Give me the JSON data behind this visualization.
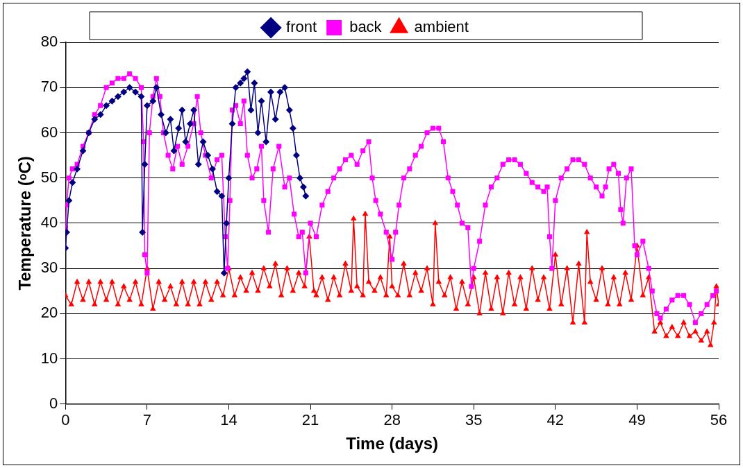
{
  "chart_data": {
    "type": "line",
    "xlabel": "Time (days)",
    "ylabel": "Temperature (ᵒC)",
    "xlim": [
      0,
      56
    ],
    "xticks": [
      0,
      7,
      14,
      21,
      28,
      35,
      42,
      49,
      56
    ],
    "ylim": [
      0,
      80
    ],
    "yticks": [
      0,
      10,
      20,
      30,
      40,
      50,
      60,
      70,
      80
    ],
    "grid": "y",
    "legend": "top",
    "line_style": "solid",
    "series": [
      {
        "name": "front",
        "color": "#000080",
        "marker": "diamond",
        "x": [
          0,
          0.1,
          0.3,
          0.6,
          1,
          1.5,
          2,
          2.5,
          3,
          3.5,
          4,
          4.5,
          5,
          5.5,
          6,
          6.5,
          6.6,
          6.8,
          7,
          7.5,
          7.8,
          8.2,
          8.6,
          9,
          9.3,
          9.7,
          10,
          10.3,
          10.7,
          11,
          11.4,
          11.8,
          12.2,
          12.6,
          13,
          13.4,
          13.6,
          13.8,
          14,
          14.3,
          14.6,
          15,
          15.3,
          15.6,
          15.9,
          16.2,
          16.5,
          16.8,
          17.2,
          17.6,
          18,
          18.4,
          18.8,
          19.2,
          19.5,
          19.8,
          20.1,
          20.4,
          20.6
        ],
        "values": [
          34.5,
          38,
          45,
          49,
          52,
          56,
          60,
          63,
          64,
          66,
          67,
          68,
          69,
          70,
          69,
          68,
          38,
          53,
          66,
          67,
          70,
          64,
          60,
          63,
          56,
          61,
          65,
          58,
          62,
          65,
          53,
          58,
          55,
          52,
          47,
          46,
          29,
          40,
          50,
          62,
          70,
          71,
          72,
          73.5,
          65,
          71,
          60,
          67,
          58,
          69,
          63,
          69,
          70,
          65,
          61,
          55,
          50,
          48,
          46
        ]
      },
      {
        "name": "back",
        "color": "#ff00ff",
        "marker": "square",
        "x": [
          0,
          0.1,
          0.3,
          0.6,
          1,
          1.5,
          2,
          2.5,
          3,
          3.5,
          4,
          4.5,
          5,
          5.5,
          6,
          6.5,
          6.7,
          6.8,
          7,
          7.2,
          7.5,
          7.8,
          8.1,
          8.4,
          8.8,
          9.2,
          9.6,
          10,
          10.5,
          11,
          11.3,
          11.6,
          12,
          12.5,
          13,
          13.4,
          13.7,
          13.9,
          14.1,
          14.3,
          14.6,
          15,
          15.3,
          15.6,
          16,
          16.4,
          16.8,
          17,
          17.4,
          17.8,
          18.3,
          18.8,
          19.2,
          19.6,
          20,
          20.3,
          20.6,
          21,
          21.5,
          22,
          22.5,
          23,
          23.5,
          24,
          24.5,
          25,
          25.5,
          26,
          26.3,
          26.6,
          27,
          27.5,
          28,
          28.3,
          28.6,
          29,
          29.5,
          30,
          30.5,
          31,
          31.5,
          32,
          32.4,
          32.8,
          33.2,
          33.6,
          34,
          34.5,
          34.8,
          35,
          35.5,
          36,
          36.5,
          37,
          37.5,
          38,
          38.5,
          39,
          39.5,
          40,
          40.5,
          41,
          41.3,
          41.5,
          41.7,
          42,
          42.5,
          43,
          43.5,
          44,
          44.5,
          45,
          45.5,
          46,
          46.3,
          46.6,
          47,
          47.4,
          47.6,
          47.8,
          48.1,
          48.5,
          48.8,
          49,
          49.5,
          50,
          50.3,
          50.7,
          51,
          51.5,
          52,
          52.5,
          53,
          53.5,
          54,
          54.5,
          55,
          55.5,
          55.8
        ],
        "values": [
          39,
          44,
          50,
          52,
          53,
          57,
          60,
          64,
          66,
          70,
          71,
          72,
          72,
          73,
          72,
          70,
          58,
          33,
          29,
          60,
          68,
          72,
          68,
          60,
          55,
          52,
          57,
          53,
          57,
          62,
          68,
          60,
          55,
          50,
          54,
          55,
          37,
          30,
          45,
          65,
          66,
          62,
          67,
          55,
          50,
          52,
          57,
          45,
          38,
          52,
          57,
          48,
          50,
          42,
          37,
          38,
          29,
          40,
          37,
          44,
          47,
          50,
          52,
          54,
          55,
          53,
          56,
          58,
          50,
          45,
          42,
          38,
          32,
          38,
          44,
          50,
          52,
          55,
          57,
          60,
          61,
          61,
          58,
          50,
          47,
          44,
          40,
          39,
          26,
          30,
          36,
          44,
          48,
          50,
          53,
          54,
          54,
          53,
          51,
          49,
          48,
          47,
          48,
          37,
          30,
          45,
          50,
          52,
          54,
          54,
          53,
          50,
          48,
          46,
          48,
          52,
          53,
          51,
          43,
          40,
          50,
          52,
          35,
          33,
          36,
          30,
          25,
          20,
          19,
          21,
          23,
          24,
          24,
          22,
          18,
          20,
          22,
          24,
          25
        ]
      },
      {
        "name": "ambient",
        "color": "#ff0000",
        "marker": "triangle",
        "x": [
          0,
          0.5,
          1,
          1.5,
          2,
          2.5,
          3,
          3.5,
          4,
          4.5,
          5,
          5.5,
          6,
          6.5,
          7,
          7.5,
          8,
          8.5,
          9,
          9.5,
          10,
          10.5,
          11,
          11.5,
          12,
          12.5,
          13,
          13.5,
          14,
          14.5,
          15,
          15.5,
          16,
          16.5,
          17,
          17.5,
          18,
          18.5,
          19,
          19.5,
          20,
          20.5,
          20.9,
          21.3,
          21.5,
          22,
          22.5,
          23,
          23.5,
          24,
          24.5,
          24.7,
          25,
          25.5,
          25.7,
          26,
          26.5,
          27,
          27.5,
          27.8,
          28,
          28.5,
          29,
          29.5,
          30,
          30.5,
          31,
          31.5,
          31.7,
          32,
          32.5,
          33,
          33.5,
          34,
          34.5,
          35,
          35.5,
          36,
          36.5,
          37,
          37.5,
          38,
          38.5,
          39,
          39.5,
          40,
          40.5,
          41,
          41.5,
          42,
          42.5,
          43,
          43.5,
          44,
          44.5,
          44.7,
          45,
          45.5,
          46,
          46.5,
          47,
          47.5,
          48,
          48.5,
          49,
          49.5,
          50,
          50.5,
          51,
          51.5,
          52,
          52.5,
          53,
          53.5,
          54,
          54.5,
          55,
          55.3,
          55.6,
          55.8,
          56
        ],
        "values": [
          24,
          22,
          27,
          23,
          27,
          22,
          27,
          23,
          27,
          22,
          26,
          23,
          27,
          22,
          30,
          21,
          27,
          23,
          26,
          22,
          27,
          22,
          27,
          22,
          27,
          23,
          27,
          24,
          30,
          24,
          28,
          25,
          29,
          25,
          30,
          26,
          31,
          24,
          30,
          25,
          29,
          26,
          37,
          25,
          24,
          28,
          23,
          28,
          24,
          31,
          25,
          41,
          26,
          24,
          42,
          27,
          25,
          28,
          24,
          37,
          26,
          24,
          31,
          24,
          29,
          25,
          30,
          22,
          40,
          27,
          24,
          28,
          21,
          27,
          22,
          28,
          20,
          29,
          21,
          28,
          20,
          29,
          22,
          28,
          21,
          30,
          23,
          28,
          21,
          33,
          22,
          30,
          18,
          31,
          18,
          38,
          27,
          23,
          30,
          22,
          28,
          22,
          29,
          23,
          35,
          24,
          28,
          16,
          18,
          15,
          17,
          15,
          18,
          15,
          16,
          14,
          16,
          13,
          18,
          26,
          22
        ]
      }
    ]
  }
}
